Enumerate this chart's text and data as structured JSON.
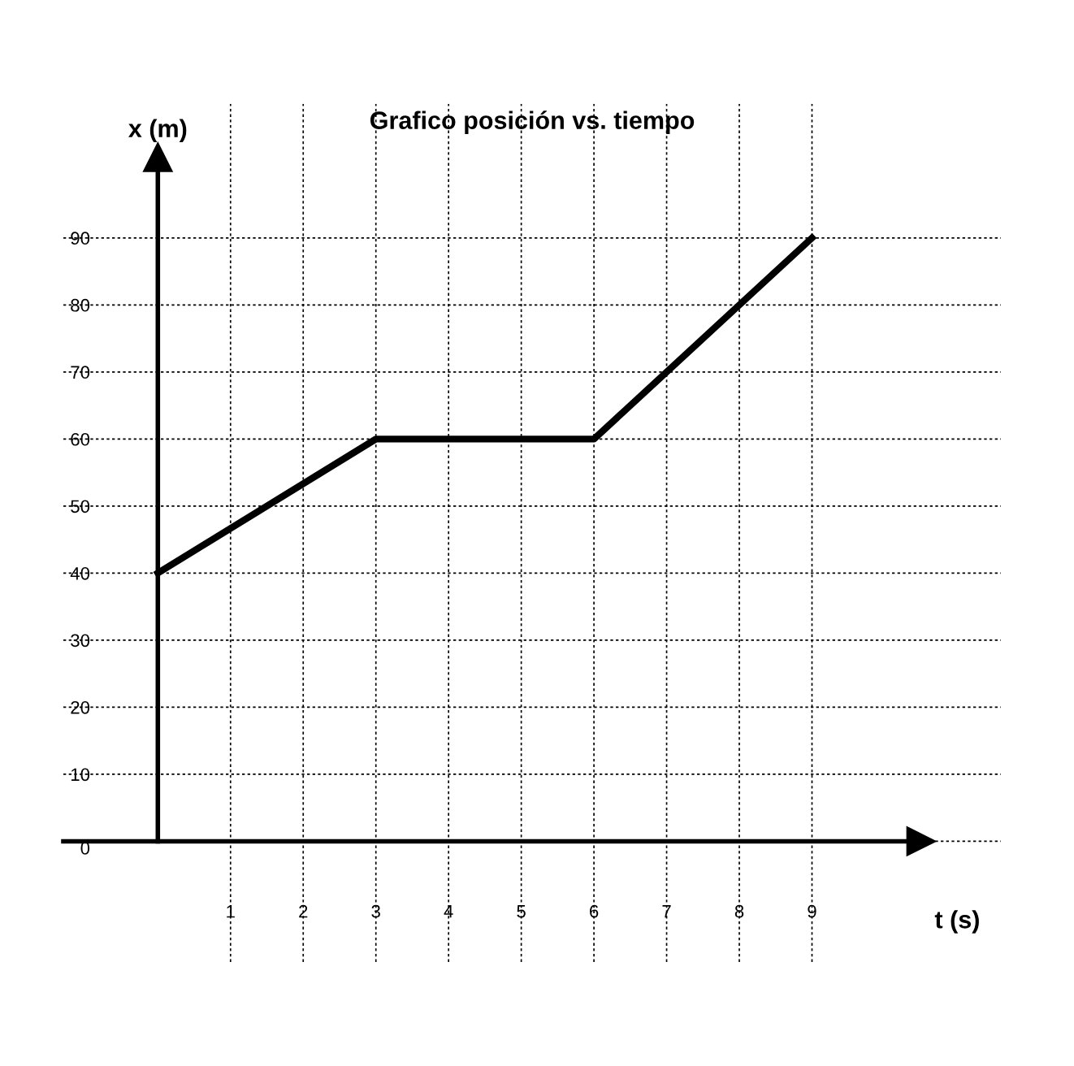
{
  "chart_data": {
    "type": "line",
    "title": "Grafico posición vs. tiempo",
    "xlabel": "t (s)",
    "ylabel": "x (m)",
    "x": [
      0,
      3,
      6,
      9
    ],
    "series": [
      {
        "color": "#000000",
        "values": [
          40,
          60,
          60,
          90
        ]
      }
    ],
    "xlim": [
      -1.3,
      11.6
    ],
    "ylim": [
      -18,
      110
    ],
    "xticks": [
      1,
      2,
      3,
      4,
      5,
      6,
      7,
      8,
      9
    ],
    "yticks": [
      0,
      10,
      20,
      30,
      40,
      50,
      60,
      70,
      80,
      90
    ],
    "grid": true,
    "marker": "none",
    "line_style": "solid"
  }
}
